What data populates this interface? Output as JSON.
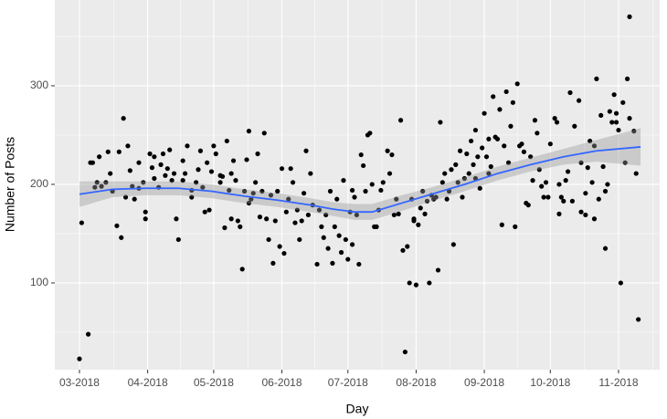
{
  "chart_data": {
    "type": "scatter",
    "x_label": "Day",
    "y_label": "Number of Posts",
    "xlim": [
      -11.2,
      263.7
    ],
    "ylim": [
      12,
      387
    ],
    "xticks": [
      {
        "value": 0,
        "label": "03-2018"
      },
      {
        "value": 31,
        "label": "04-2018"
      },
      {
        "value": 61,
        "label": "05-2018"
      },
      {
        "value": 92,
        "label": "06-2018"
      },
      {
        "value": 122,
        "label": "07-2018"
      },
      {
        "value": 153,
        "label": "08-2018"
      },
      {
        "value": 184,
        "label": "09-2018"
      },
      {
        "value": 214,
        "label": "10-2018"
      },
      {
        "value": 245,
        "label": "11-2018"
      }
    ],
    "yticks": [
      100,
      200,
      300
    ],
    "grid": true,
    "point_color": "#000000",
    "x": [
      0,
      1,
      4,
      5,
      6,
      7,
      8,
      9,
      10,
      12,
      13,
      14,
      15,
      17,
      18,
      19,
      20,
      21,
      22,
      23,
      24,
      25,
      27,
      27,
      29,
      30,
      30,
      32,
      33,
      34,
      34,
      36,
      37,
      38,
      39,
      40,
      41,
      42,
      43,
      44,
      45,
      47,
      47,
      48,
      49,
      51,
      51,
      53,
      54,
      55,
      56,
      57,
      58,
      59,
      60,
      61,
      62,
      64,
      64,
      65,
      66,
      67,
      68,
      69,
      69,
      70,
      71,
      72,
      73,
      74,
      75,
      76,
      77,
      77,
      78,
      79,
      80,
      81,
      82,
      83,
      84,
      85,
      86,
      87,
      88,
      89,
      90,
      91,
      92,
      93,
      94,
      95,
      96,
      97,
      98,
      99,
      100,
      101,
      102,
      103,
      104,
      105,
      106,
      108,
      109,
      110,
      111,
      112,
      113,
      114,
      115,
      116,
      117,
      118,
      119,
      120,
      121,
      122,
      123,
      124,
      124,
      125,
      126,
      127,
      128,
      129,
      130,
      131,
      132,
      133,
      134,
      135,
      136,
      137,
      138,
      140,
      141,
      142,
      143,
      144,
      145,
      146,
      147,
      148,
      149,
      150,
      151,
      152,
      152,
      153,
      154,
      155,
      156,
      157,
      158,
      159,
      160,
      161,
      162,
      163,
      164,
      165,
      166,
      167,
      168,
      169,
      170,
      171,
      172,
      173,
      174,
      175,
      176,
      177,
      178,
      179,
      180,
      180,
      181,
      182,
      183,
      184,
      185,
      186,
      186,
      187,
      188,
      189,
      190,
      191,
      192,
      193,
      194,
      195,
      196,
      197,
      198,
      199,
      200,
      201,
      202,
      203,
      204,
      205,
      206,
      207,
      208,
      209,
      210,
      211,
      212,
      213,
      214,
      216,
      217,
      218,
      218,
      219,
      220,
      221,
      222,
      223,
      224,
      225,
      227,
      228,
      228,
      230,
      230,
      231,
      232,
      233,
      234,
      234,
      235,
      236,
      237,
      238,
      239,
      239,
      240,
      241,
      242,
      243,
      244,
      244,
      245,
      246,
      247,
      248,
      249,
      250,
      250,
      252,
      253,
      254
    ],
    "y": [
      23,
      161,
      48,
      222,
      222,
      197,
      202,
      228,
      198,
      202,
      233,
      211,
      193,
      158,
      233,
      146,
      267,
      187,
      239,
      214,
      198,
      185,
      196,
      222,
      202,
      165,
      172,
      231,
      217,
      206,
      228,
      197,
      220,
      231,
      209,
      216,
      235,
      204,
      211,
      165,
      144,
      224,
      204,
      211,
      239,
      194,
      187,
      202,
      215,
      234,
      197,
      172,
      222,
      174,
      213,
      239,
      231,
      209,
      202,
      208,
      156,
      244,
      194,
      211,
      165,
      224,
      204,
      163,
      157,
      114,
      193,
      225,
      181,
      254,
      185,
      191,
      202,
      231,
      167,
      193,
      252,
      165,
      144,
      189,
      120,
      163,
      193,
      137,
      216,
      130,
      172,
      185,
      216,
      202,
      161,
      174,
      144,
      163,
      191,
      234,
      169,
      211,
      179,
      119,
      174,
      157,
      146,
      169,
      135,
      193,
      120,
      157,
      185,
      148,
      131,
      204,
      144,
      124,
      172,
      194,
      139,
      187,
      169,
      119,
      230,
      219,
      193,
      250,
      252,
      200,
      157,
      157,
      174,
      194,
      202,
      234,
      211,
      230,
      169,
      185,
      170,
      265,
      133,
      30,
      137,
      100,
      185,
      163,
      165,
      98,
      159,
      176,
      193,
      170,
      183,
      100,
      189,
      185,
      187,
      113,
      263,
      202,
      211,
      185,
      193,
      215,
      139,
      220,
      202,
      234,
      187,
      206,
      231,
      211,
      244,
      220,
      206,
      255,
      228,
      196,
      237,
      272,
      228,
      211,
      246,
      218,
      289,
      248,
      246,
      276,
      159,
      239,
      294,
      222,
      259,
      283,
      157,
      302,
      239,
      241,
      233,
      181,
      179,
      228,
      204,
      265,
      252,
      215,
      198,
      187,
      202,
      187,
      241,
      267,
      263,
      200,
      170,
      187,
      183,
      204,
      213,
      293,
      183,
      259,
      285,
      222,
      172,
      191,
      169,
      217,
      244,
      202,
      165,
      239,
      307,
      185,
      270,
      218,
      193,
      135,
      200,
      274,
      263,
      291,
      263,
      272,
      255,
      100,
      283,
      222,
      307,
      370,
      267,
      254,
      211,
      63
    ],
    "smooth": {
      "color": "#3366ff",
      "band_color": "#999999",
      "x": [
        0,
        15,
        30,
        45,
        60,
        75,
        90,
        105,
        115,
        125,
        133,
        145,
        160,
        175,
        190,
        205,
        220,
        235,
        255
      ],
      "y": [
        190,
        195,
        196,
        196,
        193,
        188,
        184,
        179,
        175,
        172,
        172,
        180,
        190,
        200,
        211,
        220,
        228,
        234,
        238
      ],
      "lower": [
        177,
        187,
        189,
        189,
        186,
        181,
        177,
        172,
        168,
        164,
        164,
        172,
        183,
        193,
        204,
        213,
        220,
        223,
        219
      ],
      "upper": [
        203,
        203,
        203,
        203,
        200,
        195,
        191,
        186,
        182,
        180,
        180,
        188,
        197,
        207,
        218,
        227,
        236,
        245,
        257
      ]
    }
  }
}
